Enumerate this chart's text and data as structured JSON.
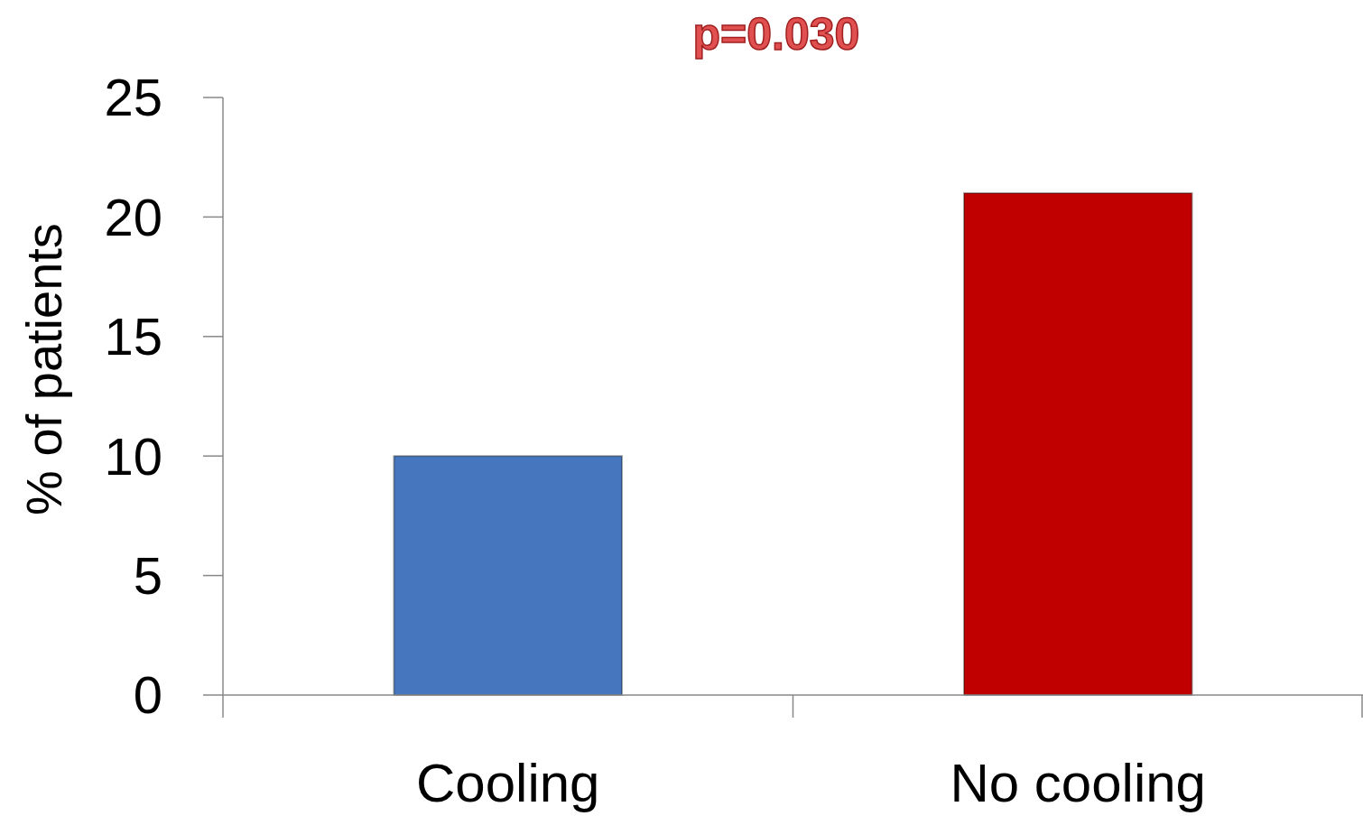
{
  "chart_data": {
    "type": "bar",
    "ylabel": "% of patients",
    "categories": [
      "Cooling",
      "No cooling"
    ],
    "values": [
      10,
      21
    ],
    "colors": [
      "#4677be",
      "#c00000"
    ],
    "ylim": [
      0,
      25
    ],
    "yticks": [
      0,
      5,
      10,
      15,
      20,
      25
    ],
    "grid": false,
    "annotations": [
      "p=0.030"
    ]
  }
}
